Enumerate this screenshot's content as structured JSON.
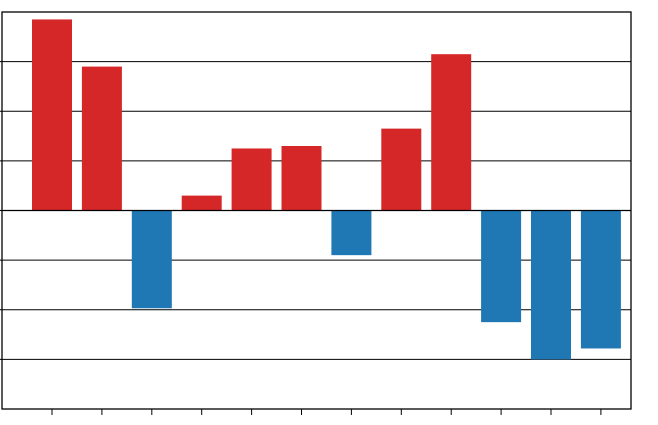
{
  "chart_data": {
    "type": "bar",
    "categories": [
      "",
      "",
      "",
      "",
      "",
      "",
      "",
      "",
      "",
      "",
      "",
      ""
    ],
    "values": [
      3.85,
      2.9,
      -1.97,
      0.3,
      1.25,
      1.3,
      -0.9,
      1.65,
      3.15,
      -2.25,
      -3.0,
      -2.78
    ],
    "ylim": [
      -4.0,
      4.0
    ],
    "grid": true,
    "positive_color": "#d62728",
    "negative_color": "#1f77b4"
  }
}
